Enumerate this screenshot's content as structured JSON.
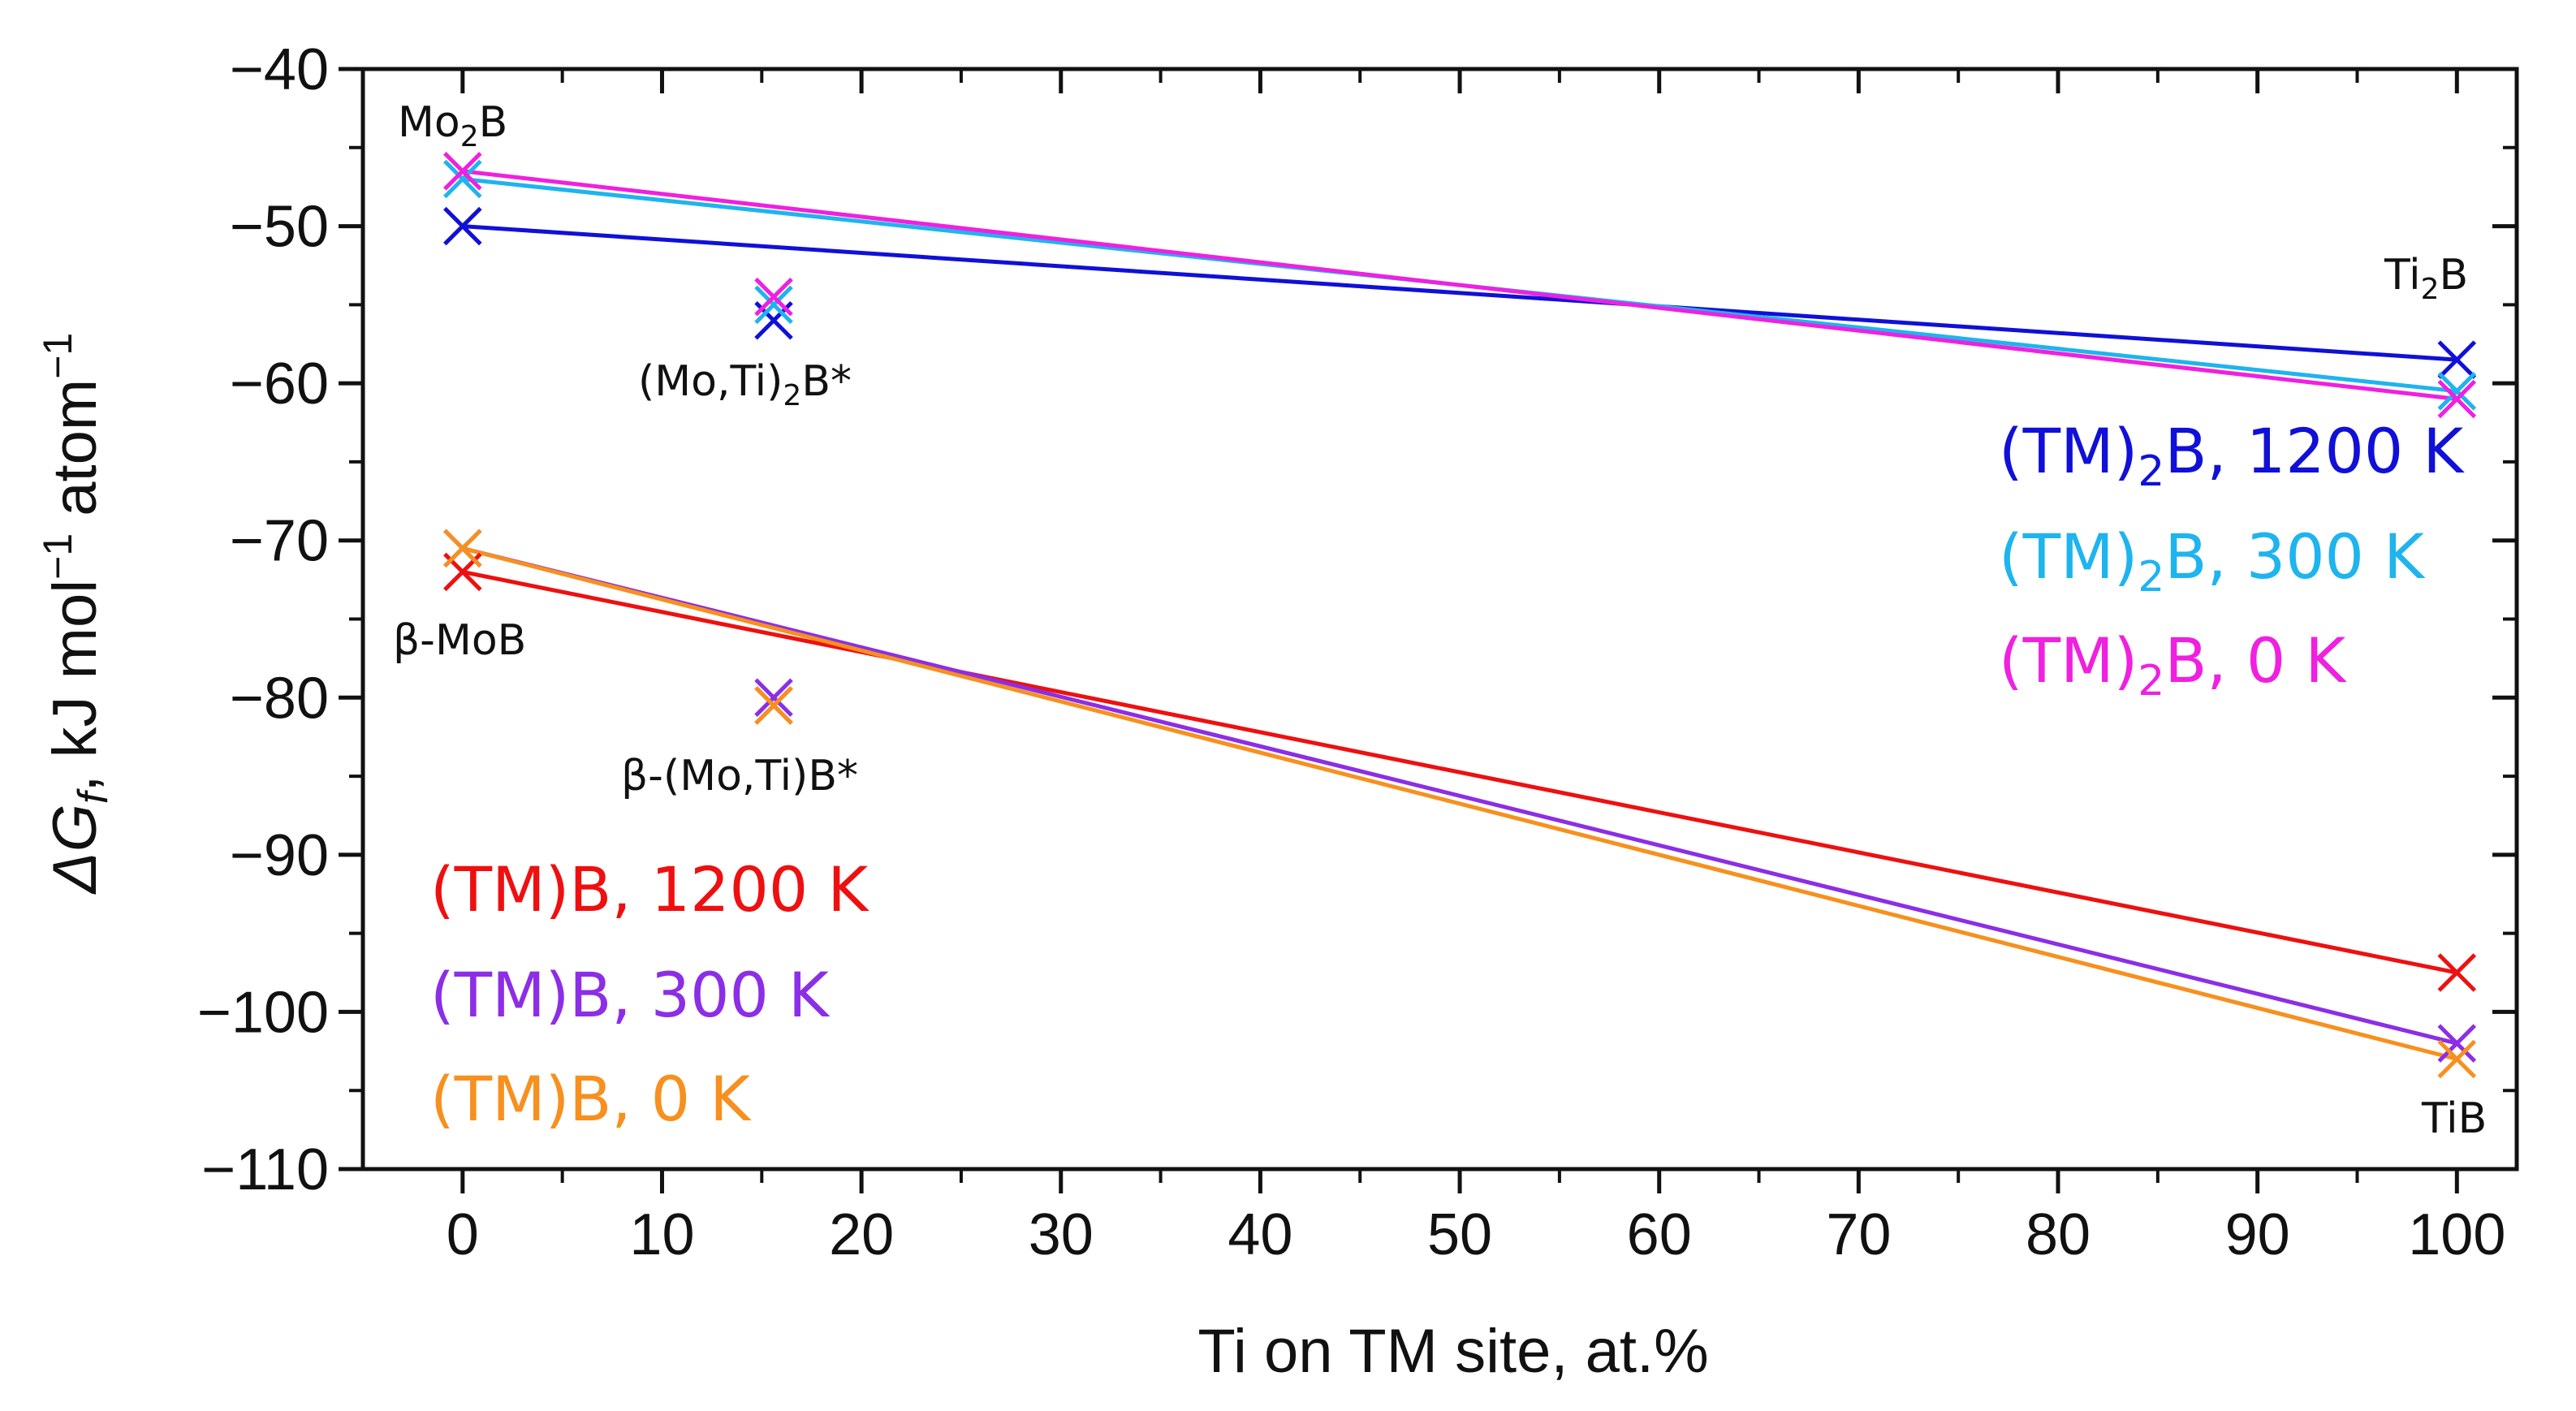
{
  "chart_data": {
    "type": "line",
    "title": "",
    "xlabel": "Ti on TM site, at.%",
    "ylabel_parts": [
      "ΔG",
      "f",
      ",  kJ mol",
      "−1",
      " atom",
      "−1"
    ],
    "xlim": [
      -5,
      103
    ],
    "ylim": [
      -110,
      -40
    ],
    "x_ticks": [
      0,
      10,
      20,
      30,
      40,
      50,
      60,
      70,
      80,
      90,
      100
    ],
    "y_ticks": [
      -40,
      -50,
      -60,
      -70,
      -80,
      -90,
      -100,
      -110
    ],
    "y_tick_labels": [
      "−40",
      "−50",
      "−60",
      "−70",
      "−80",
      "−90",
      "−100",
      "−110"
    ],
    "marker": "x",
    "series": [
      {
        "name_parts": [
          "(TM)",
          "2",
          "B, 1200 K"
        ],
        "color": "#1010d8",
        "x": [
          0,
          100
        ],
        "y": [
          -50.0,
          -58.5
        ],
        "extra_markers": [
          [
            15.6,
            -56.0
          ]
        ]
      },
      {
        "name_parts": [
          "(TM)",
          "2",
          "B, 300 K"
        ],
        "color": "#1eb4ee",
        "x": [
          0,
          100
        ],
        "y": [
          -47.0,
          -60.5
        ],
        "extra_markers": [
          [
            15.6,
            -55.0
          ]
        ]
      },
      {
        "name_parts": [
          "(TM)",
          "2",
          "B, 0 K"
        ],
        "color": "#f020e0",
        "x": [
          0,
          100
        ],
        "y": [
          -46.5,
          -61.0
        ],
        "extra_markers": [
          [
            15.6,
            -54.5
          ]
        ]
      },
      {
        "name": "(TM)B, 1200 K",
        "color": "#ee1010",
        "x": [
          0,
          100
        ],
        "y": [
          -72.0,
          -97.5
        ],
        "extra_markers": [
          [
            15.6,
            -80.5
          ]
        ]
      },
      {
        "name": "(TM)B, 300 K",
        "color": "#8c2ee6",
        "x": [
          0,
          100
        ],
        "y": [
          -70.5,
          -102.0
        ],
        "extra_markers": [
          [
            15.6,
            -80.0
          ]
        ]
      },
      {
        "name": "(TM)B, 0 K",
        "color": "#f7901e",
        "x": [
          0,
          100
        ],
        "y": [
          -70.5,
          -103.0
        ],
        "extra_markers": [
          [
            15.6,
            -80.5
          ]
        ]
      }
    ],
    "annotations": [
      {
        "id": "mo2b",
        "parts": [
          "Mo",
          "2",
          "B"
        ]
      },
      {
        "id": "ti2b",
        "parts": [
          "Ti",
          "2",
          "B"
        ]
      },
      {
        "id": "moti2b",
        "parts": [
          "(Mo,Ti)",
          "2",
          "B*"
        ]
      },
      {
        "id": "bmob",
        "text": "β-MoB"
      },
      {
        "id": "bmotib",
        "text": "β-(Mo,Ti)B*"
      },
      {
        "id": "tib",
        "text": "TiB"
      }
    ]
  }
}
